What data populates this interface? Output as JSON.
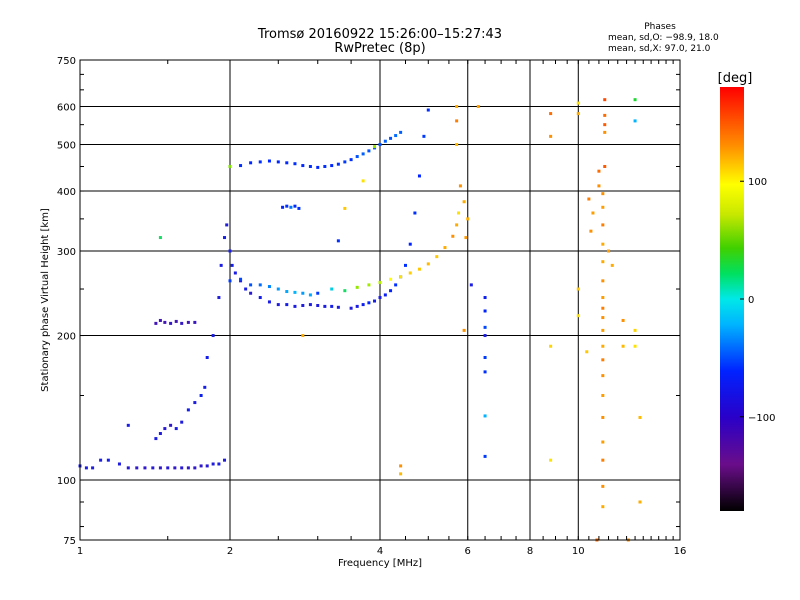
{
  "chart_data": {
    "type": "scatter",
    "title": "Tromsø 20160922 15:26:00–15:27:43",
    "subtitle": "RwPretec (8p)",
    "xlabel": "Frequency [MHz]",
    "ylabel": "Stationary phase Virtual Height [km]",
    "x_scale": "log",
    "y_scale": "log",
    "xlim": [
      1,
      16
    ],
    "ylim": [
      75,
      750
    ],
    "x_ticks": [
      1,
      2,
      4,
      6,
      8,
      10,
      16
    ],
    "x_tick_labels": [
      "1",
      "2",
      "4",
      "6",
      "8",
      "10",
      "16"
    ],
    "y_ticks": [
      75,
      100,
      200,
      300,
      400,
      500,
      600,
      750
    ],
    "y_tick_labels": [
      "75",
      "100",
      "200",
      "300",
      "400",
      "500",
      "600",
      "750"
    ],
    "grid": true,
    "stats": {
      "heading": "Phases",
      "o_line": "mean, sd,O: −98.9, 18.0",
      "x_line": "mean, sd,X:  97.0, 21.0"
    },
    "colorbar": {
      "label": "[deg]",
      "range": [
        -180,
        180
      ],
      "ticks": [
        100,
        0,
        -100
      ],
      "tick_labels": [
        "100",
        "0",
        "−100"
      ]
    },
    "series": [
      {
        "points": [
          [
            1.0,
            107
          ],
          [
            1.03,
            106
          ],
          [
            1.06,
            106
          ],
          [
            1.1,
            110
          ],
          [
            1.14,
            110
          ],
          [
            1.2,
            108
          ],
          [
            1.25,
            106
          ],
          [
            1.3,
            106
          ],
          [
            1.35,
            106
          ],
          [
            1.4,
            106
          ],
          [
            1.45,
            106
          ],
          [
            1.5,
            106
          ],
          [
            1.55,
            106
          ],
          [
            1.6,
            106
          ],
          [
            1.65,
            106
          ],
          [
            1.7,
            106
          ],
          [
            1.75,
            107
          ],
          [
            1.8,
            107
          ],
          [
            1.85,
            108
          ],
          [
            1.9,
            108
          ],
          [
            1.95,
            110
          ]
        ],
        "phases": [
          -110,
          -110,
          -112,
          -110,
          -108,
          -112,
          -115,
          -118,
          -118,
          -115,
          -118,
          -115,
          -118,
          -115,
          -118,
          -118,
          -118,
          -115,
          -112,
          -110,
          -112
        ]
      },
      {
        "points": [
          [
            1.42,
            212
          ],
          [
            1.45,
            215
          ],
          [
            1.48,
            213
          ],
          [
            1.52,
            212
          ],
          [
            1.56,
            214
          ],
          [
            1.6,
            212
          ],
          [
            1.65,
            213
          ],
          [
            1.7,
            213
          ]
        ],
        "phases": [
          -125,
          -125,
          -125,
          -120,
          -125,
          -120,
          -125,
          -122
        ]
      },
      {
        "points": [
          [
            1.42,
            122
          ],
          [
            1.45,
            125
          ],
          [
            1.48,
            128
          ],
          [
            1.52,
            130
          ],
          [
            1.56,
            128
          ],
          [
            1.6,
            132
          ],
          [
            1.65,
            140
          ],
          [
            1.7,
            145
          ],
          [
            1.75,
            150
          ],
          [
            1.78,
            156
          ]
        ],
        "phases": [
          -110,
          -112,
          -115,
          -118,
          -110,
          -112,
          -108,
          -110,
          -105,
          -108
        ]
      },
      {
        "points": [
          [
            1.8,
            180
          ],
          [
            1.85,
            200
          ],
          [
            1.9,
            240
          ],
          [
            1.92,
            280
          ],
          [
            1.95,
            320
          ],
          [
            1.97,
            340
          ],
          [
            2.0,
            300
          ],
          [
            2.02,
            280
          ],
          [
            2.05,
            270
          ],
          [
            2.1,
            260
          ],
          [
            2.15,
            250
          ],
          [
            2.2,
            245
          ],
          [
            2.3,
            240
          ],
          [
            2.4,
            235
          ],
          [
            2.5,
            232
          ],
          [
            2.6,
            232
          ],
          [
            2.7,
            230
          ],
          [
            2.8,
            231
          ],
          [
            2.9,
            232
          ],
          [
            3.0,
            231
          ],
          [
            3.1,
            230
          ],
          [
            3.2,
            230
          ],
          [
            3.3,
            229
          ],
          [
            3.5,
            228
          ],
          [
            3.6,
            230
          ],
          [
            3.7,
            232
          ],
          [
            3.8,
            234
          ],
          [
            3.9,
            236
          ],
          [
            4.0,
            240
          ],
          [
            4.1,
            243
          ],
          [
            4.2,
            248
          ],
          [
            4.3,
            255
          ],
          [
            4.4,
            265
          ],
          [
            4.5,
            280
          ],
          [
            4.6,
            310
          ],
          [
            4.7,
            360
          ],
          [
            4.8,
            430
          ],
          [
            4.9,
            520
          ],
          [
            5.0,
            590
          ]
        ],
        "phases": [
          -108,
          -110,
          -112,
          -110,
          -108,
          -112,
          -110,
          -108,
          -110,
          -112,
          -110,
          -115,
          -108,
          -110,
          -112,
          -108,
          -110,
          -112,
          -110,
          -112,
          -110,
          -108,
          -110,
          -112,
          -110,
          -105,
          -100,
          -108,
          -110,
          -105,
          -100,
          -95,
          -92,
          -95,
          -100,
          -95,
          -100,
          -90,
          -95
        ]
      },
      {
        "points": [
          [
            2.0,
            260
          ],
          [
            2.1,
            262
          ],
          [
            2.2,
            255
          ],
          [
            2.3,
            255
          ],
          [
            2.4,
            253
          ],
          [
            2.5,
            250
          ],
          [
            2.6,
            247
          ],
          [
            2.7,
            246
          ],
          [
            2.8,
            245
          ],
          [
            2.9,
            243
          ],
          [
            3.0,
            245
          ],
          [
            3.2,
            250
          ],
          [
            3.4,
            248
          ],
          [
            3.6,
            252
          ],
          [
            3.8,
            255
          ],
          [
            4.0,
            258
          ],
          [
            4.2,
            262
          ],
          [
            4.4,
            265
          ],
          [
            4.6,
            270
          ],
          [
            4.8,
            275
          ],
          [
            5.0,
            282
          ],
          [
            5.2,
            292
          ],
          [
            5.4,
            305
          ],
          [
            5.6,
            322
          ],
          [
            5.7,
            340
          ],
          [
            5.75,
            360
          ]
        ],
        "phases": [
          -90,
          -85,
          -80,
          -70,
          -60,
          -50,
          -45,
          -40,
          -50,
          -45,
          -90,
          -20,
          20,
          70,
          75,
          80,
          100,
          110,
          118,
          120,
          125,
          120,
          130,
          140,
          130,
          110
        ]
      },
      {
        "points": [
          [
            2.1,
            452
          ],
          [
            2.2,
            458
          ],
          [
            2.3,
            460
          ],
          [
            2.4,
            462
          ],
          [
            2.5,
            460
          ],
          [
            2.6,
            458
          ],
          [
            2.7,
            456
          ],
          [
            2.8,
            452
          ],
          [
            2.9,
            450
          ],
          [
            3.0,
            448
          ],
          [
            3.1,
            450
          ],
          [
            3.2,
            452
          ],
          [
            3.3,
            455
          ],
          [
            3.4,
            460
          ],
          [
            3.5,
            465
          ],
          [
            3.6,
            472
          ],
          [
            3.7,
            478
          ],
          [
            3.8,
            485
          ],
          [
            3.9,
            492
          ],
          [
            4.0,
            500
          ],
          [
            4.1,
            508
          ],
          [
            4.2,
            515
          ],
          [
            4.3,
            522
          ],
          [
            4.4,
            530
          ]
        ],
        "phases": [
          -95,
          -98,
          -95,
          -98,
          -98,
          -98,
          -95,
          -98,
          -95,
          -98,
          -95,
          -98,
          -95,
          -90,
          -95,
          -80,
          -75,
          -80,
          -85,
          -80,
          -75,
          -80,
          -70,
          -75
        ]
      },
      {
        "points": [
          [
            2.55,
            370
          ],
          [
            2.6,
            372
          ],
          [
            2.65,
            370
          ],
          [
            2.7,
            372
          ],
          [
            2.75,
            368
          ]
        ],
        "phases": [
          -100,
          -95,
          -65,
          -98,
          -95
        ]
      },
      {
        "points": [
          [
            6.5,
            240
          ],
          [
            6.5,
            225
          ],
          [
            6.5,
            208
          ],
          [
            6.5,
            200
          ],
          [
            6.5,
            180
          ],
          [
            6.5,
            168
          ],
          [
            6.5,
            136
          ],
          [
            6.5,
            112
          ]
        ],
        "phases": [
          -105,
          -100,
          -85,
          -110,
          -90,
          -95,
          -40,
          -90
        ]
      },
      {
        "points": [
          [
            11.2,
            395
          ],
          [
            11.2,
            370
          ],
          [
            11.2,
            340
          ],
          [
            11.2,
            310
          ],
          [
            11.2,
            285
          ],
          [
            11.2,
            260
          ],
          [
            11.2,
            240
          ],
          [
            11.2,
            228
          ],
          [
            11.2,
            218
          ],
          [
            11.2,
            205
          ],
          [
            11.2,
            190
          ],
          [
            11.2,
            178
          ],
          [
            11.2,
            165
          ],
          [
            11.2,
            150
          ],
          [
            11.2,
            135
          ],
          [
            11.2,
            120
          ],
          [
            11.2,
            110
          ],
          [
            11.2,
            97
          ],
          [
            11.2,
            88
          ]
        ],
        "phases": [
          140,
          135,
          145,
          130,
          130,
          140,
          135,
          145,
          140,
          135,
          130,
          145,
          140,
          135,
          140,
          135,
          145,
          140,
          130
        ]
      },
      {
        "points": [
          [
            5.7,
            600
          ],
          [
            5.7,
            560
          ],
          [
            5.7,
            500
          ],
          [
            5.8,
            410
          ],
          [
            5.9,
            380
          ],
          [
            8.8,
            580
          ],
          [
            8.8,
            520
          ],
          [
            10.0,
            610
          ],
          [
            10.0,
            580
          ],
          [
            11.3,
            620
          ],
          [
            11.3,
            575
          ],
          [
            11.3,
            550
          ],
          [
            11.3,
            530
          ],
          [
            13.0,
            620
          ],
          [
            13.0,
            560
          ],
          [
            11.0,
            440
          ],
          [
            11.3,
            450
          ],
          [
            11.0,
            410
          ],
          [
            10.5,
            385
          ],
          [
            10.7,
            360
          ],
          [
            10.6,
            330
          ],
          [
            8.8,
            190
          ],
          [
            8.8,
            110
          ],
          [
            10.4,
            185
          ],
          [
            13.0,
            205
          ],
          [
            13.0,
            190
          ],
          [
            12.3,
            190
          ],
          [
            12.3,
            215
          ],
          [
            11.7,
            280
          ],
          [
            11.5,
            300
          ],
          [
            10.0,
            220
          ],
          [
            10.0,
            250
          ],
          [
            5.9,
            205
          ],
          [
            5.95,
            320
          ],
          [
            6.0,
            350
          ],
          [
            6.1,
            255
          ],
          [
            6.3,
            600
          ],
          [
            4.4,
            103
          ],
          [
            4.4,
            107
          ],
          [
            3.4,
            368
          ],
          [
            3.7,
            420
          ],
          [
            3.3,
            315
          ],
          [
            3.9,
            495
          ],
          [
            2.0,
            450
          ],
          [
            1.25,
            130
          ],
          [
            1.45,
            320
          ],
          [
            2.8,
            200
          ],
          [
            13.3,
            135
          ],
          [
            13.3,
            90
          ],
          [
            12.6,
            75
          ],
          [
            10.9,
            75
          ]
        ],
        "phases": [
          130,
          145,
          125,
          140,
          130,
          150,
          140,
          110,
          130,
          160,
          150,
          155,
          140,
          30,
          -40,
          150,
          155,
          140,
          145,
          135,
          140,
          115,
          110,
          120,
          115,
          110,
          125,
          140,
          130,
          135,
          110,
          120,
          140,
          135,
          130,
          -110,
          135,
          125,
          140,
          120,
          110,
          -95,
          70,
          65,
          -110,
          20,
          130,
          125,
          130,
          140,
          150
        ]
      }
    ]
  }
}
